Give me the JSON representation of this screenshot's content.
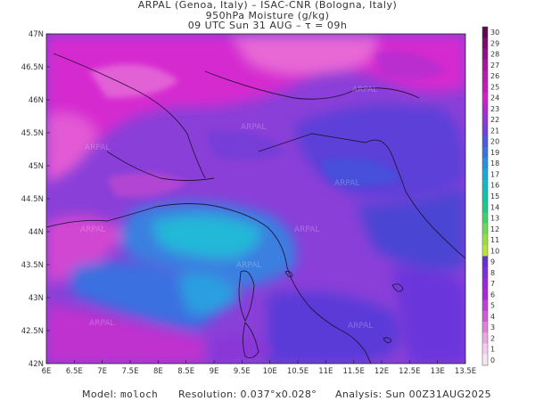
{
  "header": {
    "line1": "ARPAL (Genoa, Italy)  –  ISAC-CNR (Bologna, Italy)",
    "line2": "950hPa Moisture (g/kg)",
    "line3": "09 UTC Sun 31 AUG  –  τ = 09h"
  },
  "axes": {
    "lat_labels": [
      "47N",
      "46.5N",
      "46N",
      "45.5N",
      "45N",
      "44.5N",
      "44N",
      "43.5N",
      "43N",
      "42.5N",
      "42N"
    ],
    "lon_labels": [
      "6E",
      "6.5E",
      "7E",
      "7.5E",
      "8E",
      "8.5E",
      "9E",
      "9.5E",
      "10E",
      "10.5E",
      "11E",
      "11.5E",
      "12E",
      "12.5E",
      "13E",
      "13.5E"
    ]
  },
  "colorbar": {
    "labels": [
      "30",
      "29",
      "28",
      "27",
      "26",
      "25",
      "24",
      "23",
      "22",
      "21",
      "20",
      "19",
      "18",
      "17",
      "16",
      "15",
      "14",
      "13",
      "12",
      "11",
      "10",
      "9",
      "8",
      "7",
      "6",
      "5",
      "4",
      "3",
      "2",
      "1",
      "0"
    ],
    "colors": [
      "#5a0a4e",
      "#7a0c6a",
      "#8e1283",
      "#a3179a",
      "#b51cab",
      "#c21bb8",
      "#d020c7",
      "#b02ad0",
      "#8e37d6",
      "#6f44db",
      "#4d59de",
      "#3a73e0",
      "#2a8fe0",
      "#1aa7d8",
      "#12b9c3",
      "#13c3a6",
      "#1fc78a",
      "#3fd070",
      "#70d75a",
      "#98dd46",
      "#bde23a",
      "#6231d6",
      "#7b2edd",
      "#932ae0",
      "#a926dd",
      "#bc3fd8",
      "#cd5dd6",
      "#dd82d8",
      "#e9a9e1",
      "#f3cdee",
      "#f8e6f6"
    ]
  },
  "watermark": "ARPAL",
  "footer": {
    "model_label": "Model:",
    "model": "moloch",
    "resolution_label": "Resolution:",
    "resolution": "0.037°x0.028°",
    "analysis_label": "Analysis:",
    "analysis": "Sun 00Z31AUG2025"
  }
}
